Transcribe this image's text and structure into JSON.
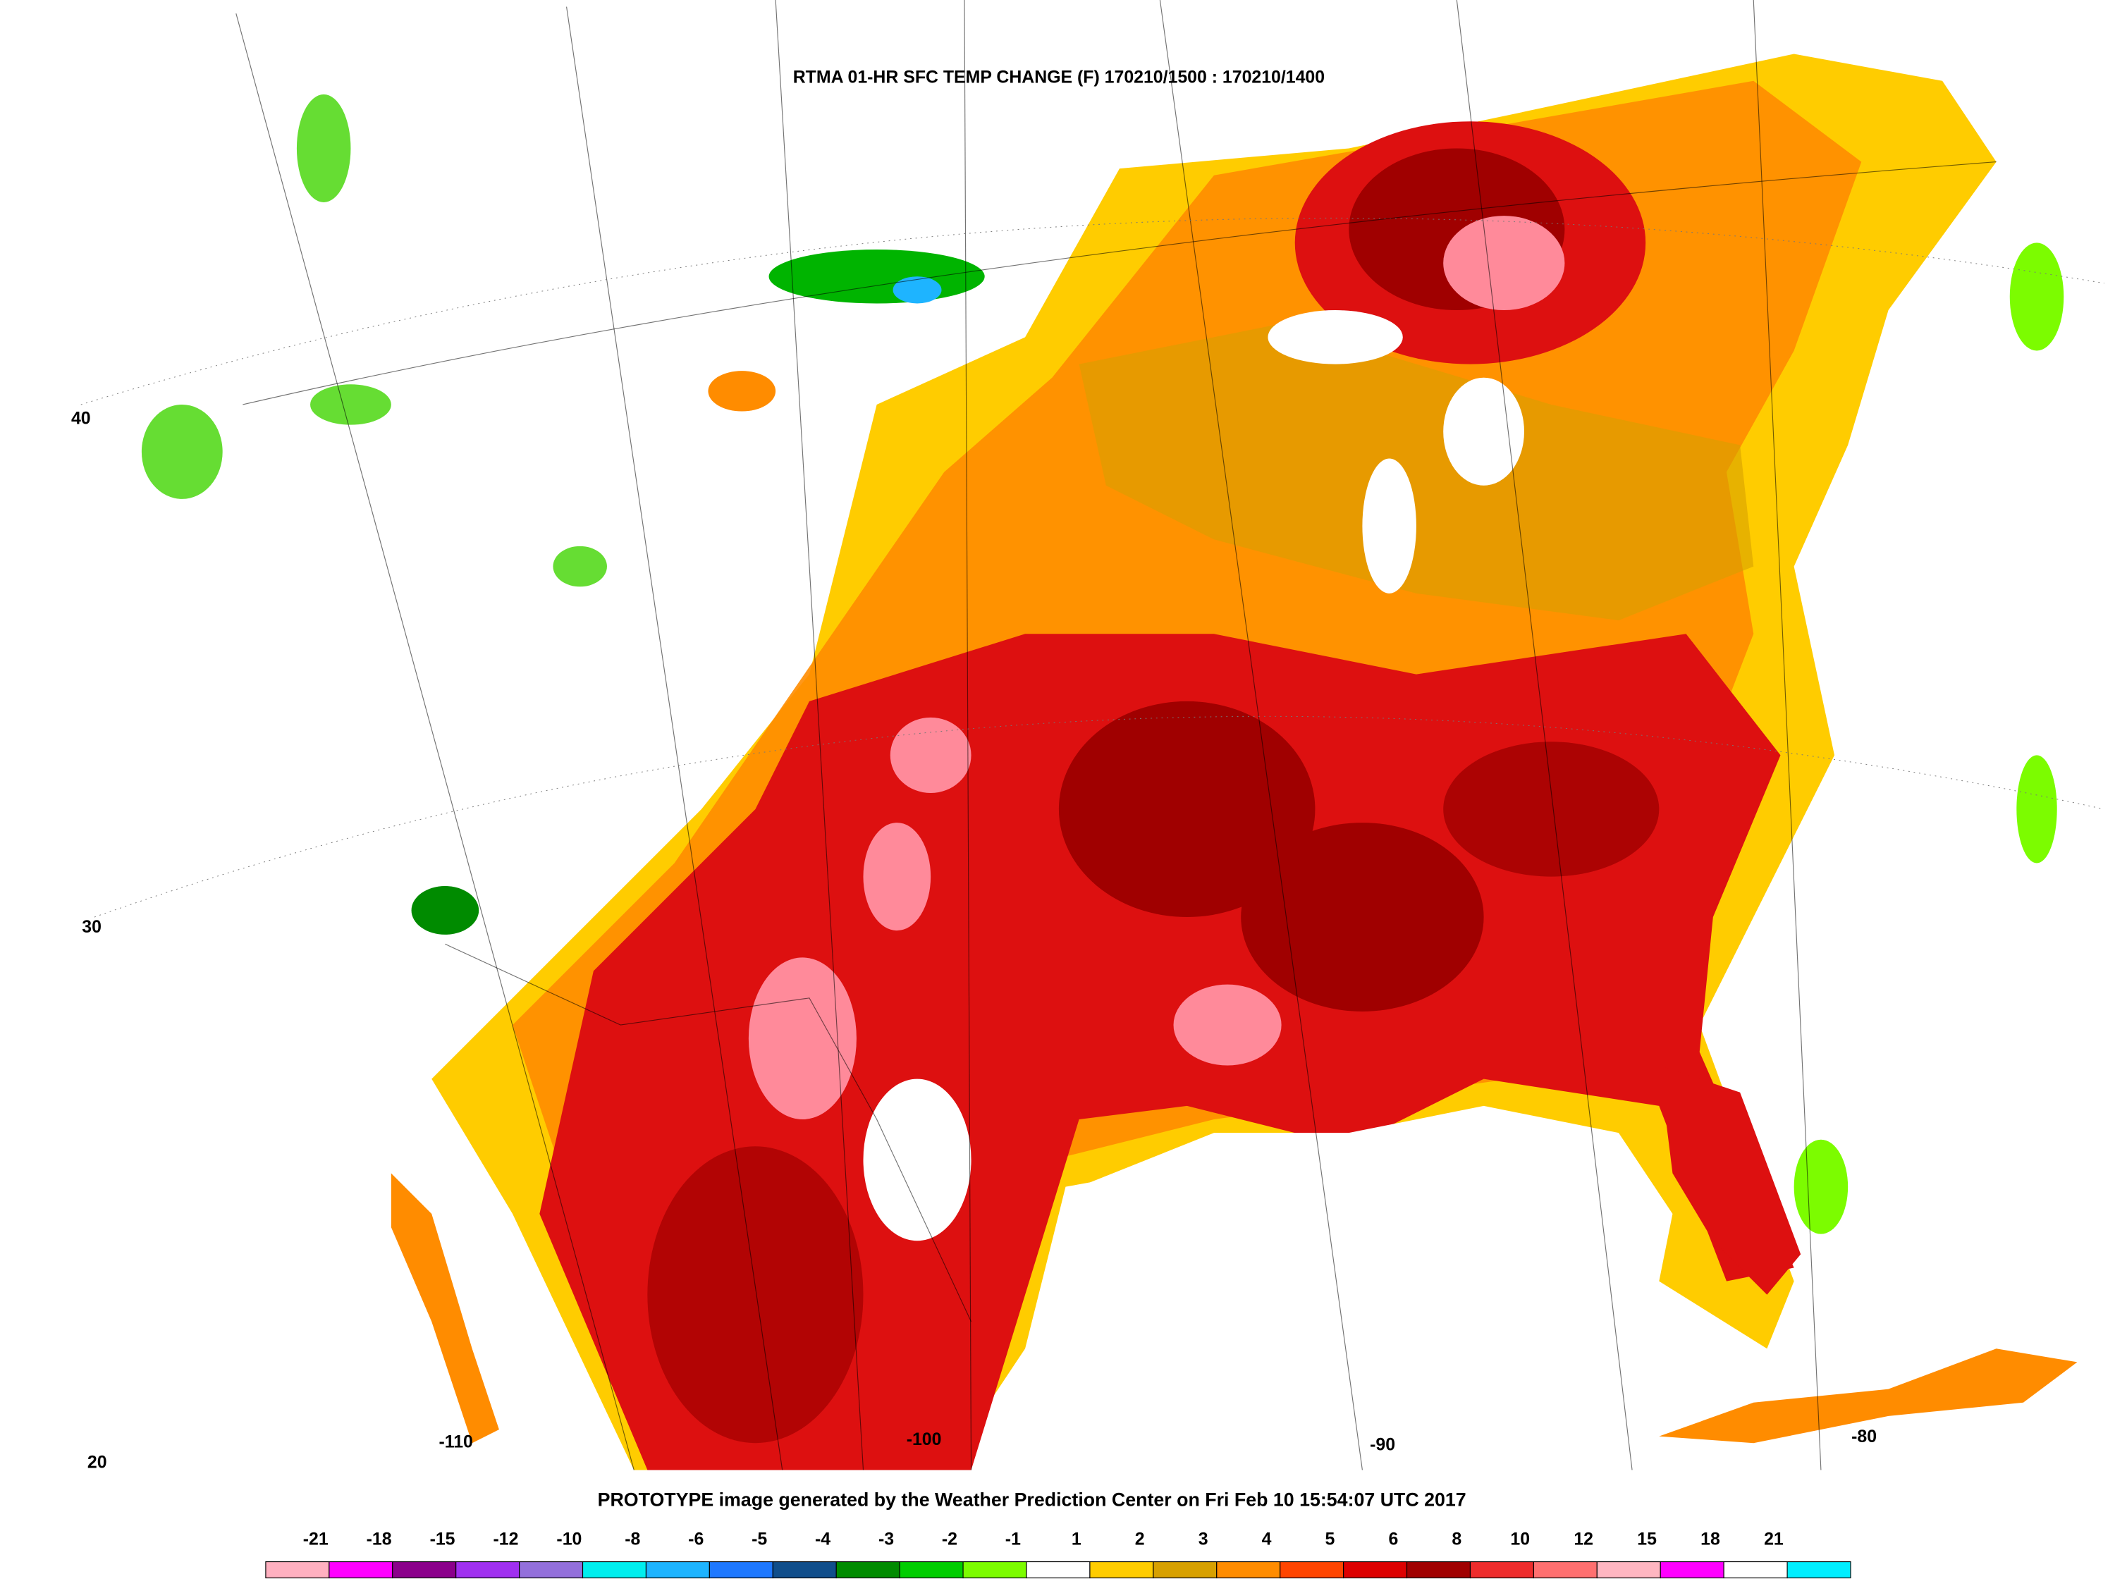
{
  "title": "RTMA 01-HR SFC TEMP CHANGE (F) 170210/1500 : 170210/1400",
  "footer": "PROTOTYPE image generated by the Weather Prediction Center on Fri Feb 10 15:54:07 UTC 2017",
  "latitude_labels": [
    40,
    30,
    20
  ],
  "longitude_labels": [
    -110,
    -100,
    -90,
    -80
  ],
  "colorbar": {
    "levels": [
      -21,
      -18,
      -15,
      -12,
      -10,
      -8,
      -6,
      -5,
      -4,
      -3,
      -2,
      -1,
      1,
      2,
      3,
      4,
      5,
      6,
      8,
      10,
      12,
      15,
      18,
      21
    ],
    "colors": [
      "#ffb0c0",
      "#ff00ff",
      "#8b008b",
      "#a030f0",
      "#9370db",
      "#00eeee",
      "#1eb4ff",
      "#1e78ff",
      "#104e8b",
      "#008b00",
      "#00cd00",
      "#7cfc00",
      "#ffffff",
      "#ffcc00",
      "#d7a000",
      "#ff8c00",
      "#ff4500",
      "#dd0000",
      "#a00000",
      "#ee2c2c",
      "#ff7070",
      "#ffb6c1",
      "#ff00ff",
      "#ffffff",
      "#00eeff"
    ]
  }
}
